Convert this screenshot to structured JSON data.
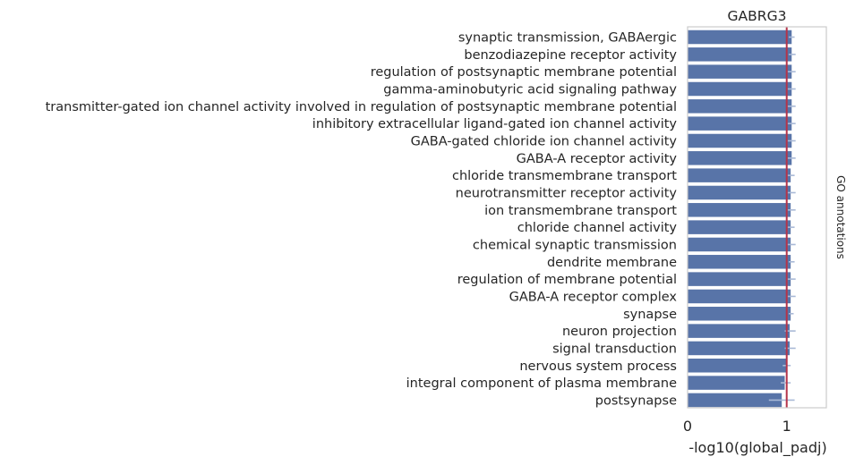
{
  "chart_data": {
    "type": "bar",
    "orientation": "horizontal",
    "title": "GABRG3",
    "xlabel": "-log10(global_padj)",
    "side_label": "GO annotations",
    "xlim": [
      0,
      1.4
    ],
    "xticks": [
      0,
      1
    ],
    "grid": false,
    "reference_line": 1,
    "colors": {
      "bar": "#5874a8",
      "errorbar": "#a9b9d6",
      "reference": "#b5344a",
      "frame": "#cccccc"
    },
    "categories": [
      "synaptic transmission, GABAergic",
      "benzodiazepine receptor activity",
      "regulation of postsynaptic membrane potential",
      "gamma-aminobutyric acid signaling pathway",
      "transmitter-gated ion channel activity involved in regulation of postsynaptic membrane potential",
      "inhibitory extracellular ligand-gated ion channel activity",
      "GABA-gated chloride ion channel activity",
      "GABA-A receptor activity",
      "chloride transmembrane transport",
      "neurotransmitter receptor activity",
      "ion transmembrane transport",
      "chloride channel activity",
      "chemical synaptic transmission",
      "dendrite membrane",
      "regulation of membrane potential",
      "GABA-A receptor complex",
      "synapse",
      "neuron projection",
      "signal transduction",
      "nervous system process",
      "integral component of plasma membrane",
      "postsynapse"
    ],
    "values": [
      1.05,
      1.05,
      1.05,
      1.05,
      1.05,
      1.05,
      1.05,
      1.05,
      1.04,
      1.04,
      1.04,
      1.04,
      1.04,
      1.04,
      1.04,
      1.04,
      1.04,
      1.03,
      1.03,
      1.0,
      0.98,
      0.95
    ],
    "errors": [
      [
        1.02,
        1.08
      ],
      [
        1.02,
        1.09
      ],
      [
        1.01,
        1.09
      ],
      [
        1.01,
        1.09
      ],
      [
        1.01,
        1.09
      ],
      [
        1.01,
        1.09
      ],
      [
        1.01,
        1.09
      ],
      [
        1.01,
        1.09
      ],
      [
        1.01,
        1.08
      ],
      [
        1.01,
        1.09
      ],
      [
        1.01,
        1.09
      ],
      [
        1.01,
        1.08
      ],
      [
        1.01,
        1.09
      ],
      [
        1.02,
        1.08
      ],
      [
        1.01,
        1.09
      ],
      [
        1.01,
        1.09
      ],
      [
        1.02,
        1.07
      ],
      [
        0.98,
        1.09
      ],
      [
        0.98,
        1.09
      ],
      [
        0.96,
        1.04
      ],
      [
        0.94,
        1.04
      ],
      [
        0.82,
        1.08
      ]
    ]
  }
}
